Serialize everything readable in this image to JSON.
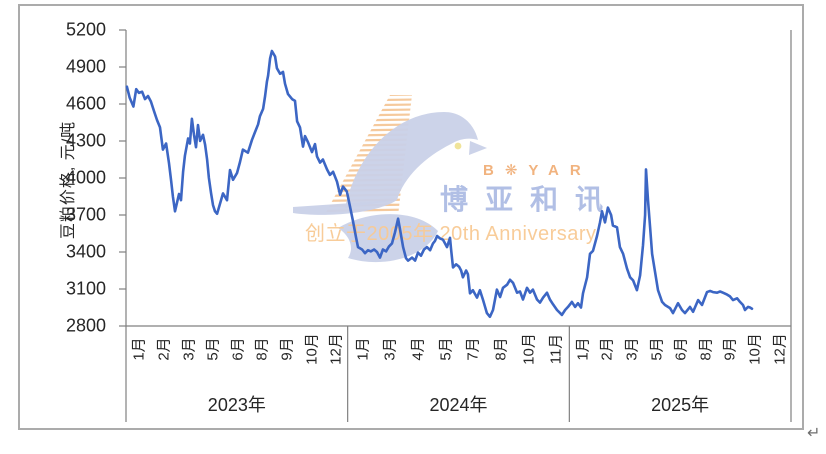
{
  "page": {
    "paragraph_return_mark": "↵"
  },
  "watermark": {
    "brand_en": "BOYAR",
    "brand_cn": "博亚和讯",
    "tagline": "创立于2005年 20th Anniversary",
    "colors": {
      "logo": "#c9d1e8",
      "hatch": "#f3bc84",
      "brand_en": "#eea668",
      "brand_cn": "#adbce4",
      "tagline": "#f8c994",
      "eye": "#f0e49a"
    }
  },
  "chart_data": {
    "type": "line",
    "title": "",
    "ylabel": "豆粕价格, 元/吨",
    "ylim": [
      2800,
      5200
    ],
    "ytick_step": 300,
    "y_ticks": [
      5200,
      4900,
      4600,
      4300,
      4000,
      3700,
      3400,
      3100,
      2800
    ],
    "grid": false,
    "legend_position": "none",
    "line_color": "#3c66c4",
    "x_axis": {
      "unit": "months_since_2023_01",
      "range": [
        0,
        36
      ],
      "years": [
        {
          "label": "2023年",
          "month_labels": [
            "1月",
            "2月",
            "3月",
            "5月",
            "6月",
            "8月",
            "9月",
            "10月",
            "12月"
          ]
        },
        {
          "label": "2024年",
          "month_labels": [
            "1月",
            "3月",
            "4月",
            "5月",
            "7月",
            "8月",
            "10月",
            "11月"
          ]
        },
        {
          "label": "2025年",
          "month_labels": [
            "1月",
            "2月",
            "3月",
            "5月",
            "6月",
            "8月",
            "9月",
            "10月",
            "12月"
          ]
        }
      ]
    },
    "series": [
      {
        "name": "豆粕价格",
        "points": [
          [
            0.05,
            4740
          ],
          [
            0.2,
            4650
          ],
          [
            0.4,
            4580
          ],
          [
            0.55,
            4720
          ],
          [
            0.7,
            4690
          ],
          [
            0.87,
            4700
          ],
          [
            1.03,
            4640
          ],
          [
            1.19,
            4665
          ],
          [
            1.35,
            4620
          ],
          [
            1.52,
            4540
          ],
          [
            1.68,
            4470
          ],
          [
            1.84,
            4410
          ],
          [
            2.0,
            4230
          ],
          [
            2.17,
            4280
          ],
          [
            2.33,
            4120
          ],
          [
            2.44,
            3980
          ],
          [
            2.54,
            3850
          ],
          [
            2.65,
            3730
          ],
          [
            2.76,
            3800
          ],
          [
            2.87,
            3870
          ],
          [
            2.98,
            3820
          ],
          [
            3.09,
            4050
          ],
          [
            3.19,
            4180
          ],
          [
            3.36,
            4320
          ],
          [
            3.46,
            4280
          ],
          [
            3.57,
            4480
          ],
          [
            3.68,
            4350
          ],
          [
            3.79,
            4250
          ],
          [
            3.9,
            4430
          ],
          [
            4.01,
            4300
          ],
          [
            4.17,
            4350
          ],
          [
            4.28,
            4270
          ],
          [
            4.39,
            4150
          ],
          [
            4.49,
            4000
          ],
          [
            4.6,
            3880
          ],
          [
            4.71,
            3780
          ],
          [
            4.82,
            3730
          ],
          [
            4.93,
            3710
          ],
          [
            4.98,
            3735
          ],
          [
            5.25,
            3875
          ],
          [
            5.47,
            3820
          ],
          [
            5.63,
            4065
          ],
          [
            5.79,
            3985
          ],
          [
            6.01,
            4040
          ],
          [
            6.17,
            4130
          ],
          [
            6.33,
            4230
          ],
          [
            6.6,
            4205
          ],
          [
            6.82,
            4310
          ],
          [
            6.98,
            4370
          ],
          [
            7.15,
            4435
          ],
          [
            7.25,
            4500
          ],
          [
            7.42,
            4560
          ],
          [
            7.53,
            4665
          ],
          [
            7.63,
            4780
          ],
          [
            7.69,
            4830
          ],
          [
            7.8,
            4970
          ],
          [
            7.9,
            5030
          ],
          [
            8.07,
            4985
          ],
          [
            8.17,
            4890
          ],
          [
            8.34,
            4845
          ],
          [
            8.5,
            4860
          ],
          [
            8.61,
            4765
          ],
          [
            8.77,
            4680
          ],
          [
            8.99,
            4640
          ],
          [
            9.15,
            4625
          ],
          [
            9.26,
            4460
          ],
          [
            9.42,
            4410
          ],
          [
            9.58,
            4255
          ],
          [
            9.69,
            4340
          ],
          [
            9.85,
            4290
          ],
          [
            10.07,
            4210
          ],
          [
            10.23,
            4275
          ],
          [
            10.34,
            4175
          ],
          [
            10.5,
            4125
          ],
          [
            10.66,
            4150
          ],
          [
            10.88,
            4070
          ],
          [
            11.04,
            4025
          ],
          [
            11.21,
            4050
          ],
          [
            11.42,
            3970
          ],
          [
            11.59,
            3865
          ],
          [
            11.75,
            3930
          ],
          [
            11.96,
            3890
          ],
          [
            12.13,
            3765
          ],
          [
            12.29,
            3650
          ],
          [
            12.45,
            3520
          ],
          [
            12.56,
            3440
          ],
          [
            12.78,
            3420
          ],
          [
            12.94,
            3390
          ],
          [
            13.1,
            3415
          ],
          [
            13.26,
            3405
          ],
          [
            13.43,
            3420
          ],
          [
            13.59,
            3400
          ],
          [
            13.75,
            3355
          ],
          [
            13.91,
            3420
          ],
          [
            14.08,
            3405
          ],
          [
            14.24,
            3445
          ],
          [
            14.4,
            3470
          ],
          [
            14.56,
            3560
          ],
          [
            14.73,
            3670
          ],
          [
            14.83,
            3590
          ],
          [
            15.0,
            3440
          ],
          [
            15.16,
            3350
          ],
          [
            15.27,
            3330
          ],
          [
            15.48,
            3355
          ],
          [
            15.65,
            3330
          ],
          [
            15.81,
            3395
          ],
          [
            15.97,
            3370
          ],
          [
            16.13,
            3420
          ],
          [
            16.29,
            3440
          ],
          [
            16.46,
            3415
          ],
          [
            16.62,
            3470
          ],
          [
            16.73,
            3490
          ],
          [
            16.84,
            3530
          ],
          [
            17.0,
            3510
          ],
          [
            17.16,
            3500
          ],
          [
            17.27,
            3470
          ],
          [
            17.38,
            3440
          ],
          [
            17.54,
            3515
          ],
          [
            17.6,
            3420
          ],
          [
            17.7,
            3275
          ],
          [
            17.87,
            3300
          ],
          [
            18.03,
            3280
          ],
          [
            18.14,
            3250
          ],
          [
            18.24,
            3195
          ],
          [
            18.41,
            3250
          ],
          [
            18.51,
            3220
          ],
          [
            18.62,
            3065
          ],
          [
            18.78,
            3090
          ],
          [
            19.0,
            3030
          ],
          [
            19.16,
            3090
          ],
          [
            19.33,
            3010
          ],
          [
            19.43,
            2960
          ],
          [
            19.54,
            2905
          ],
          [
            19.7,
            2875
          ],
          [
            19.87,
            2930
          ],
          [
            20.08,
            3095
          ],
          [
            20.25,
            3035
          ],
          [
            20.41,
            3110
          ],
          [
            20.63,
            3135
          ],
          [
            20.79,
            3175
          ],
          [
            20.95,
            3150
          ],
          [
            21.17,
            3070
          ],
          [
            21.33,
            3080
          ],
          [
            21.49,
            3015
          ],
          [
            21.71,
            3110
          ],
          [
            21.87,
            3070
          ],
          [
            22.03,
            3095
          ],
          [
            22.25,
            3015
          ],
          [
            22.41,
            2990
          ],
          [
            22.58,
            3030
          ],
          [
            22.79,
            3070
          ],
          [
            22.95,
            3015
          ],
          [
            23.12,
            2975
          ],
          [
            23.33,
            2930
          ],
          [
            23.5,
            2905
          ],
          [
            23.6,
            2890
          ],
          [
            23.77,
            2930
          ],
          [
            23.93,
            2955
          ],
          [
            24.14,
            2995
          ],
          [
            24.31,
            2955
          ],
          [
            24.47,
            2985
          ],
          [
            24.63,
            2950
          ],
          [
            24.74,
            3065
          ],
          [
            24.96,
            3195
          ],
          [
            25.12,
            3385
          ],
          [
            25.28,
            3410
          ],
          [
            25.5,
            3530
          ],
          [
            25.66,
            3640
          ],
          [
            25.77,
            3730
          ],
          [
            25.93,
            3640
          ],
          [
            26.09,
            3760
          ],
          [
            26.26,
            3700
          ],
          [
            26.36,
            3615
          ],
          [
            26.58,
            3600
          ],
          [
            26.74,
            3440
          ],
          [
            26.91,
            3385
          ],
          [
            27.12,
            3265
          ],
          [
            27.29,
            3195
          ],
          [
            27.45,
            3170
          ],
          [
            27.66,
            3090
          ],
          [
            27.83,
            3210
          ],
          [
            27.99,
            3455
          ],
          [
            28.1,
            3700
          ],
          [
            28.15,
            4070
          ],
          [
            28.26,
            3820
          ],
          [
            28.37,
            3600
          ],
          [
            28.48,
            3385
          ],
          [
            28.64,
            3240
          ],
          [
            28.8,
            3090
          ],
          [
            29.02,
            2995
          ],
          [
            29.18,
            2970
          ],
          [
            29.45,
            2945
          ],
          [
            29.61,
            2905
          ],
          [
            29.88,
            2985
          ],
          [
            30.1,
            2930
          ],
          [
            30.26,
            2905
          ],
          [
            30.53,
            2955
          ],
          [
            30.7,
            2915
          ],
          [
            30.97,
            3010
          ],
          [
            31.18,
            2970
          ],
          [
            31.35,
            3035
          ],
          [
            31.45,
            3075
          ],
          [
            31.62,
            3085
          ],
          [
            31.78,
            3075
          ],
          [
            32.0,
            3070
          ],
          [
            32.16,
            3080
          ],
          [
            32.32,
            3070
          ],
          [
            32.54,
            3055
          ],
          [
            32.7,
            3040
          ],
          [
            32.86,
            3010
          ],
          [
            33.08,
            3025
          ],
          [
            33.24,
            2995
          ],
          [
            33.4,
            2970
          ],
          [
            33.51,
            2930
          ],
          [
            33.67,
            2955
          ],
          [
            33.78,
            2950
          ],
          [
            33.89,
            2940
          ]
        ]
      }
    ]
  }
}
